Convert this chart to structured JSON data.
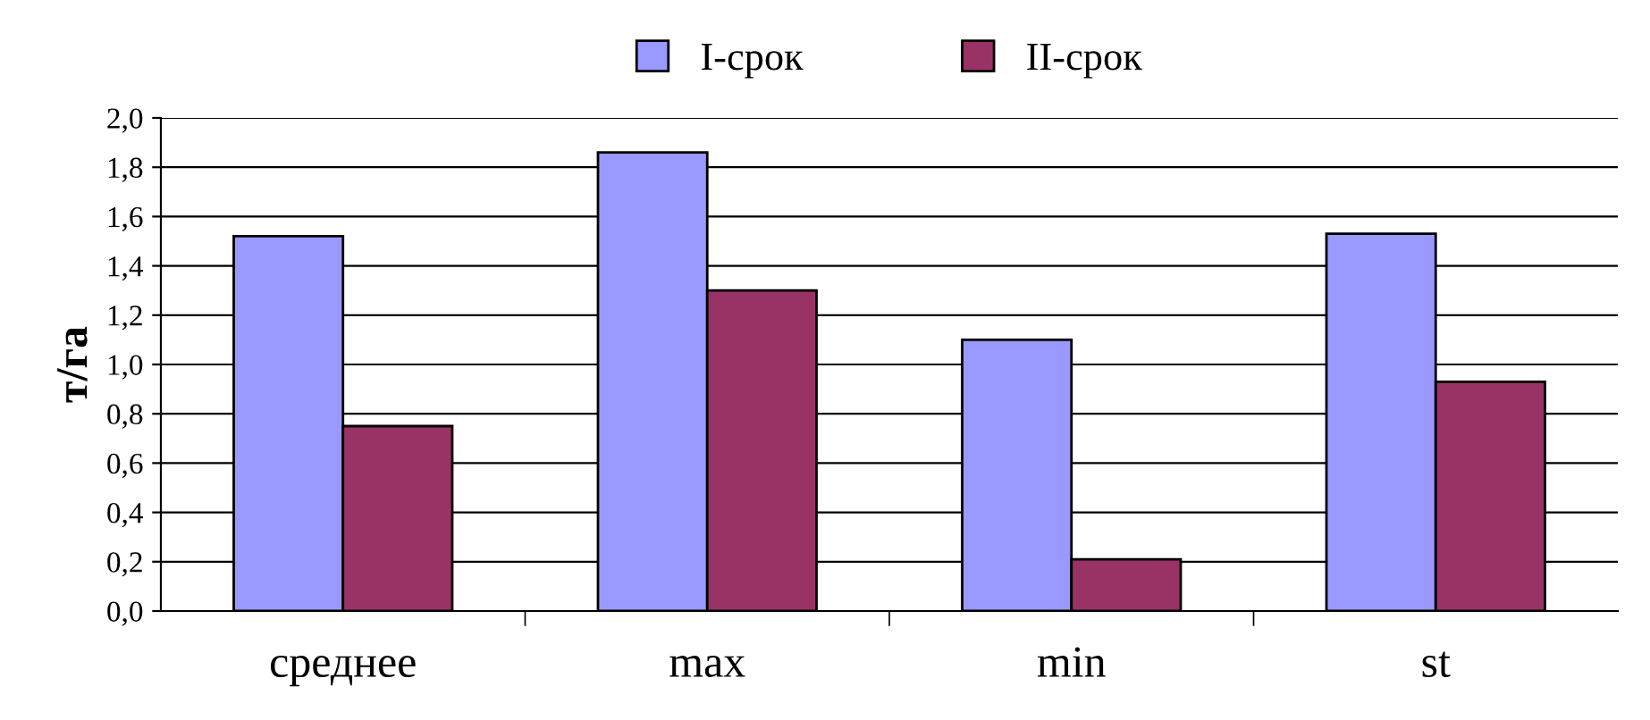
{
  "chart_data": {
    "type": "bar",
    "categories": [
      "среднее",
      "max",
      "min",
      "st"
    ],
    "ylabel": "т/га",
    "series": [
      {
        "name": "I-срок",
        "color": "#9999ff",
        "values": [
          1.52,
          1.86,
          1.1,
          1.53
        ]
      },
      {
        "name": "II-срок",
        "color": "#993366",
        "values": [
          0.75,
          1.3,
          0.21,
          0.93
        ]
      }
    ],
    "ylim": [
      0,
      2.0
    ],
    "yticks": [
      {
        "value": 0,
        "label": "0,0"
      },
      {
        "value": 0.2,
        "label": "0,2"
      },
      {
        "value": 0.4,
        "label": "0,4"
      },
      {
        "value": 0.6,
        "label": "0,6"
      },
      {
        "value": 0.8,
        "label": "0,8"
      },
      {
        "value": 1.0,
        "label": "1,0"
      },
      {
        "value": 1.2,
        "label": "1,2"
      },
      {
        "value": 1.4,
        "label": "1,4"
      },
      {
        "value": 1.6,
        "label": "1,6"
      },
      {
        "value": 1.8,
        "label": "1,8"
      },
      {
        "value": 2.0,
        "label": "2,0"
      }
    ],
    "grid": "y",
    "legend": "top"
  }
}
